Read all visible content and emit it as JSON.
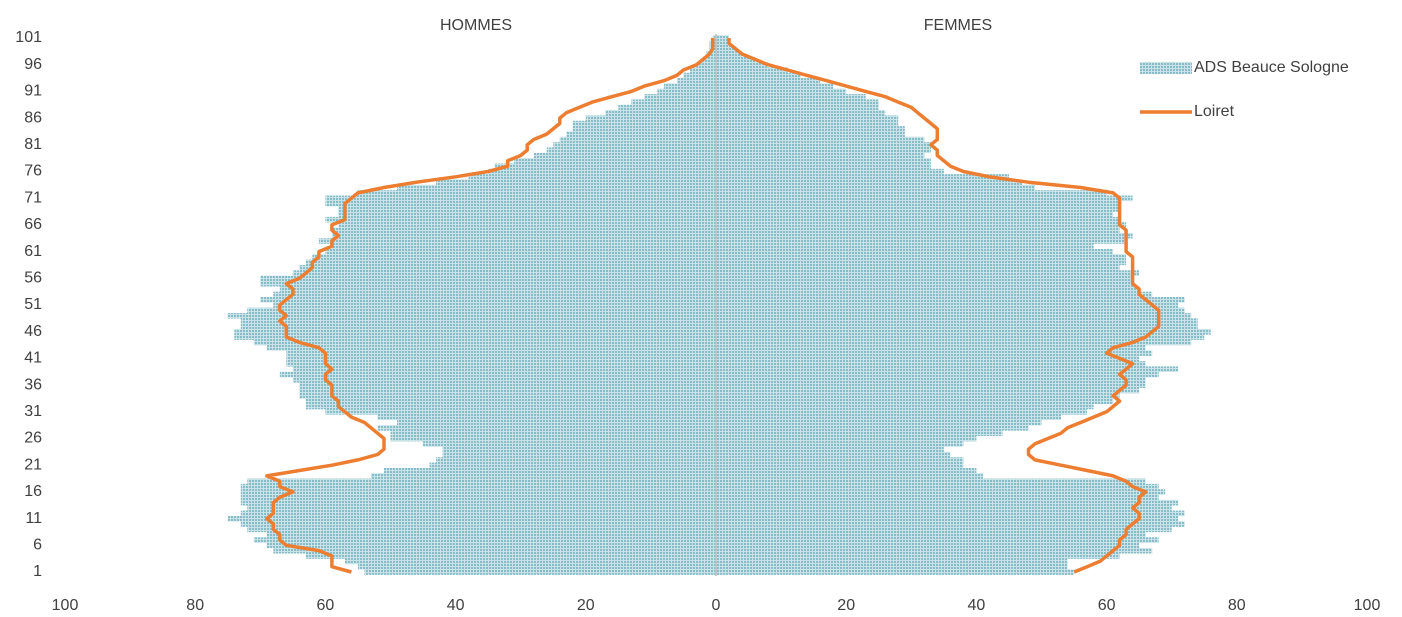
{
  "chart_data": {
    "type": "pyramid",
    "left_label": "HOMMES",
    "right_label": "FEMMES",
    "categories": [
      1,
      null,
      null,
      null,
      null,
      6,
      null,
      null,
      null,
      null,
      11,
      null,
      null,
      null,
      null,
      16,
      null,
      null,
      null,
      null,
      21,
      null,
      null,
      null,
      null,
      26,
      null,
      null,
      null,
      null,
      31,
      null,
      null,
      null,
      null,
      36,
      null,
      null,
      null,
      null,
      41,
      null,
      null,
      null,
      null,
      46,
      null,
      null,
      null,
      null,
      51,
      null,
      null,
      null,
      null,
      56,
      null,
      null,
      null,
      null,
      61,
      null,
      null,
      null,
      null,
      66,
      null,
      null,
      null,
      null,
      71,
      null,
      null,
      null,
      null,
      76,
      null,
      null,
      null,
      null,
      81,
      null,
      null,
      null,
      null,
      86,
      null,
      null,
      null,
      null,
      91,
      null,
      null,
      null,
      null,
      96,
      null,
      null,
      null,
      null,
      101
    ],
    "series": [
      {
        "name": "ADS Beauce Sologne",
        "color": "#9ccad3",
        "kind": "bar",
        "men": [
          -54,
          -55,
          -57,
          -63,
          -68,
          -69,
          -71,
          -69,
          -72,
          -73,
          -75,
          -73,
          -72,
          -73,
          -73,
          -73,
          -73,
          -72,
          -53,
          -51,
          -44,
          -43,
          -42,
          -42,
          -45,
          -50,
          -50,
          -52,
          -49,
          -52,
          -60,
          -63,
          -63,
          -64,
          -64,
          -64,
          -65,
          -67,
          -65,
          -66,
          -66,
          -66,
          -69,
          -71,
          -74,
          -74,
          -73,
          -73,
          -75,
          -72,
          -68,
          -70,
          -68,
          -67,
          -70,
          -70,
          -65,
          -64,
          -63,
          -62,
          -60,
          -59,
          -61,
          -59,
          -59,
          -58,
          -60,
          -58,
          -58,
          -60,
          -60,
          -55,
          -49,
          -43,
          -38,
          -35,
          -34,
          -31,
          -28,
          -26,
          -25,
          -24,
          -23,
          -22,
          -22,
          -20,
          -17,
          -15,
          -13,
          -11,
          -9,
          -8,
          -6,
          -5,
          -4,
          -3,
          -2,
          -1.5,
          -1,
          -1,
          -0.5
        ],
        "women": [
          55,
          54,
          54,
          62,
          67,
          65,
          68,
          66,
          70,
          72,
          71,
          72,
          70,
          71,
          68,
          69,
          68,
          66,
          41,
          40,
          38,
          38,
          36,
          35,
          38,
          40,
          44,
          48,
          50,
          53,
          57,
          58,
          61,
          62,
          65,
          66,
          66,
          68,
          71,
          66,
          65,
          67,
          66,
          73,
          75,
          76,
          74,
          74,
          73,
          72,
          71,
          72,
          67,
          65,
          64,
          64,
          65,
          62,
          63,
          63,
          61,
          58,
          63,
          64,
          62,
          63,
          62,
          61,
          62,
          62,
          64,
          60,
          49,
          47,
          45,
          35,
          33,
          33,
          32,
          33,
          33,
          32,
          29,
          29,
          28,
          28,
          26,
          25,
          25,
          23,
          20,
          18,
          16,
          13,
          11,
          8,
          6,
          4,
          3,
          2,
          2
        ]
      },
      {
        "name": "Loiret",
        "color": "#ed7d31",
        "kind": "line",
        "men": [
          -56,
          -59,
          -59,
          -59,
          -61,
          -66,
          -67,
          -67,
          -68,
          -68,
          -69,
          -68,
          -68,
          -68,
          -67,
          -65,
          -67,
          -67,
          -69,
          -64,
          -59,
          -55,
          -52,
          -51,
          -51,
          -51,
          -52,
          -53,
          -54,
          -56,
          -57,
          -58,
          -58,
          -59,
          -59,
          -59,
          -60,
          -60,
          -59,
          -60,
          -60,
          -60,
          -61,
          -64,
          -66,
          -66,
          -66,
          -67,
          -66,
          -67,
          -67,
          -66,
          -65,
          -65,
          -66,
          -64,
          -63,
          -62,
          -62,
          -61,
          -61,
          -59,
          -59,
          -58,
          -59,
          -59,
          -57,
          -57,
          -57,
          -57,
          -56,
          -55,
          -51,
          -46,
          -40,
          -35,
          -32,
          -32,
          -30,
          -29,
          -29,
          -28,
          -26,
          -25,
          -24,
          -24,
          -23,
          -21,
          -19,
          -16,
          -13,
          -11,
          -8,
          -6,
          -5,
          -3,
          -2,
          -1,
          -0.5,
          -0.5,
          -0.5
        ],
        "women": [
          55,
          57,
          59,
          60,
          61,
          62,
          62,
          63,
          63,
          64,
          65,
          65,
          64,
          65,
          65,
          66,
          64,
          63,
          61,
          57,
          53,
          49,
          48,
          48,
          49,
          51,
          53,
          54,
          56,
          58,
          60,
          61,
          62,
          61,
          62,
          63,
          63,
          62,
          63,
          64,
          62,
          60,
          61,
          64,
          66,
          67,
          68,
          68,
          68,
          68,
          67,
          66,
          65,
          65,
          64,
          64,
          64,
          64,
          64,
          64,
          63,
          63,
          63,
          63,
          63,
          62,
          62,
          62,
          62,
          62,
          62,
          61,
          56,
          48,
          42,
          38,
          36,
          35,
          34,
          34,
          33,
          34,
          34,
          34,
          33,
          32,
          31,
          30,
          28,
          26,
          23,
          20,
          17,
          14,
          11,
          8,
          6,
          4,
          3,
          2,
          2
        ]
      }
    ],
    "xlim": [
      -100,
      100
    ],
    "xticks": [
      {
        "value": -100,
        "label": "100"
      },
      {
        "value": -80,
        "label": "80"
      },
      {
        "value": -60,
        "label": "60"
      },
      {
        "value": -40,
        "label": "40"
      },
      {
        "value": -20,
        "label": "20"
      },
      0,
      20,
      40,
      60,
      80,
      100
    ],
    "legend": "top-right"
  }
}
